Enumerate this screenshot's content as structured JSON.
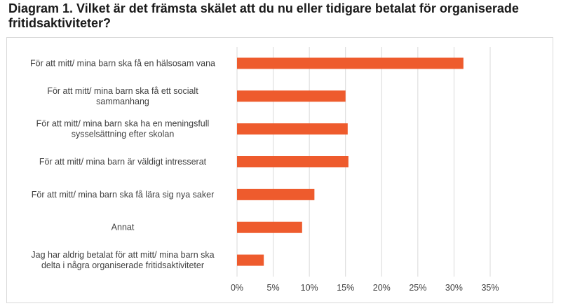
{
  "title_line1": "Diagram 1. Vilket är det främsta skälet att du nu eller tidigare betalat för organiserade",
  "title_line2": "fritidsaktiviteter?",
  "chart_data": {
    "type": "bar",
    "orientation": "horizontal",
    "categories": [
      [
        "För att mitt/ mina barn ska få en hälsosam vana"
      ],
      [
        "För att mitt/ mina barn ska få ett socialt",
        "sammanhang"
      ],
      [
        "För att mitt/ mina barn ska ha en meningsfull",
        "sysselsättning efter skolan"
      ],
      [
        "För att mitt/ mina barn är väldigt intresserat"
      ],
      [
        "För att mitt/ mina barn ska få lära sig nya saker"
      ],
      [
        "Annat"
      ],
      [
        "Jag har aldrig betalat för att mitt/ mina barn ska",
        "delta i några organiserade fritidsaktiviteter"
      ]
    ],
    "values": [
      31.3,
      15.0,
      15.3,
      15.4,
      10.7,
      9.0,
      3.7
    ],
    "xlim": [
      0,
      35
    ],
    "xticks": [
      0,
      5,
      10,
      15,
      20,
      25,
      30,
      35
    ],
    "tick_suffix": "%",
    "grid": true,
    "legend": "none",
    "colors": {
      "bar": "#ee5b2d",
      "grid": "#d9d9d9",
      "text": "#404040"
    }
  }
}
